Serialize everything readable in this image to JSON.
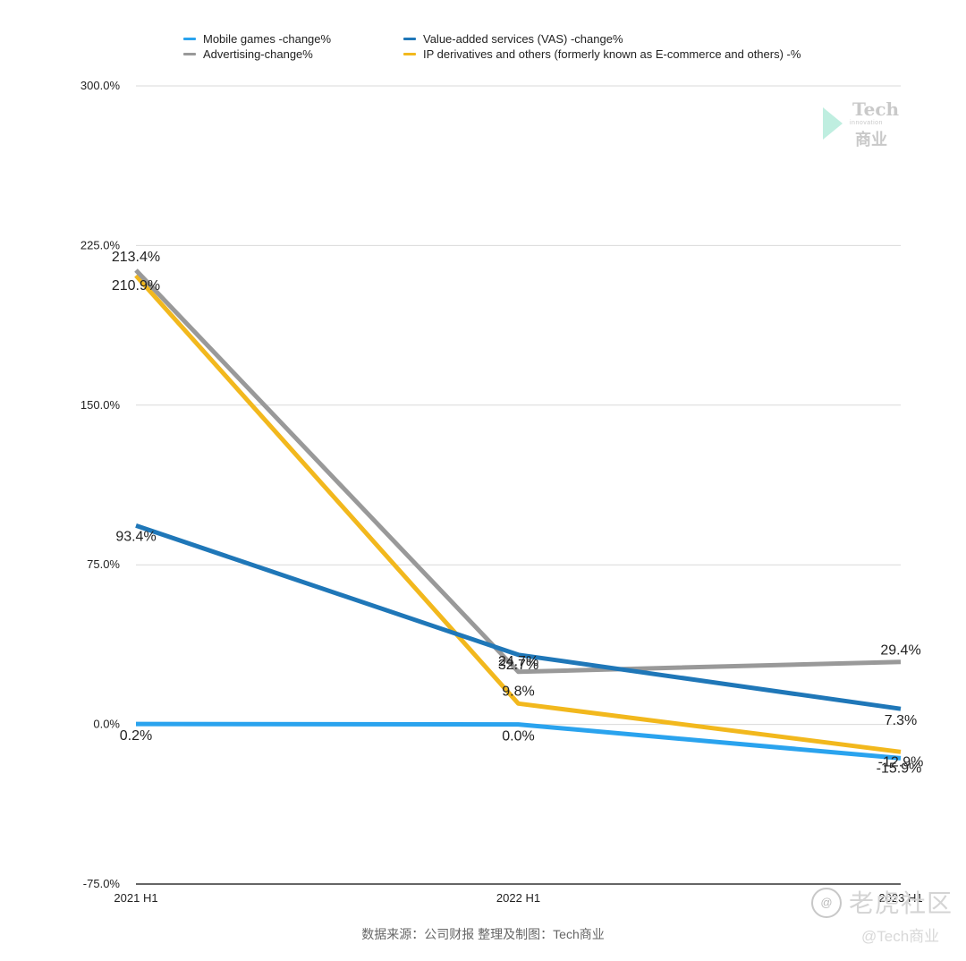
{
  "chart_data": {
    "type": "line",
    "categories": [
      "2021 H1",
      "2022 H1",
      "2023 H1"
    ],
    "ylim": [
      -75,
      300
    ],
    "yticks": [
      -75,
      0,
      75,
      150,
      225,
      300
    ],
    "ytick_labels": [
      "-75.0%",
      "0.0%",
      "75.0%",
      "150.0%",
      "225.0%",
      "300.0%"
    ],
    "grid": true,
    "legend_position": "top",
    "series": [
      {
        "name": "Mobile games -change%",
        "color": "#2aa3ee",
        "values": [
          0.2,
          0.0,
          -15.9
        ],
        "labels": [
          "0.2%",
          "0.0%",
          "-15.9%"
        ]
      },
      {
        "name": "Value-added services (VAS) -change%",
        "color": "#1f77b8",
        "values": [
          93.4,
          32.7,
          7.3
        ],
        "labels": [
          "93.4%",
          "32.7%",
          "7.3%"
        ]
      },
      {
        "name": "Advertising-change%",
        "color": "#999999",
        "values": [
          213.4,
          24.7,
          29.4
        ],
        "labels": [
          "213.4%",
          "24.7%",
          "29.4%"
        ]
      },
      {
        "name": "IP derivatives and others (formerly known as E-commerce and others) -%",
        "color": "#f2b81d",
        "values": [
          210.9,
          9.8,
          -12.9
        ],
        "labels": [
          "210.9%",
          "9.8%",
          "-12.9%"
        ]
      }
    ]
  },
  "source_text": "数据来源：公司财报 整理及制图：Tech商业",
  "watermark_top": {
    "tech": "Tech",
    "sub": "innovation",
    "cn": "商业"
  },
  "watermark_bottom": {
    "icon": "@",
    "main": "老虎社区",
    "sub": "@Tech商业"
  }
}
